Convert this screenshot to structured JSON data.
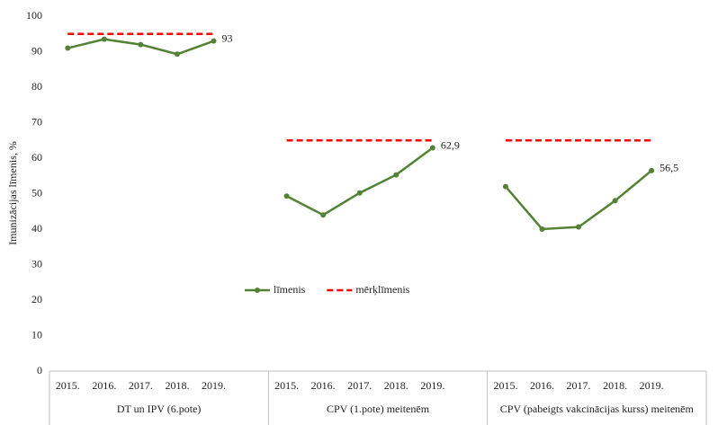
{
  "chart_data": {
    "type": "line",
    "ylabel": "Imunizācijas līmenis, %",
    "ylim": [
      0,
      100
    ],
    "yticks": [
      0,
      10,
      20,
      30,
      40,
      50,
      60,
      70,
      80,
      90,
      100
    ],
    "groups": [
      {
        "label": "DT un IPV (6.pote)",
        "categories": [
          "2015.",
          "2016.",
          "2017.",
          "2018.",
          "2019."
        ]
      },
      {
        "label": "CPV (1.pote) meitenēm",
        "categories": [
          "2015.",
          "2016.",
          "2017.",
          "2018.",
          "2019."
        ]
      },
      {
        "label": "CPV (pabeigts vakcinācijas kurss) meitenēm",
        "categories": [
          "2015.",
          "2016.",
          "2017.",
          "2018.",
          "2019."
        ]
      }
    ],
    "series": [
      {
        "name": "līmenis",
        "color": "#548235",
        "style": "solid",
        "markers": true,
        "values": [
          91,
          93.5,
          92,
          89.3,
          93,
          49.3,
          44,
          50.2,
          55.3,
          62.9,
          52,
          40,
          40.6,
          48,
          56.5
        ],
        "value_labels": [
          null,
          null,
          null,
          null,
          "93",
          null,
          null,
          null,
          null,
          "62,9",
          null,
          null,
          null,
          null,
          "56,5"
        ]
      },
      {
        "name": "mērķlīmenis",
        "color": "#ff0000",
        "style": "dashed",
        "markers": false,
        "values": [
          95,
          95,
          95,
          95,
          95,
          65,
          65,
          65,
          65,
          65,
          65,
          65,
          65,
          65,
          65
        ]
      }
    ],
    "legend": "center"
  }
}
